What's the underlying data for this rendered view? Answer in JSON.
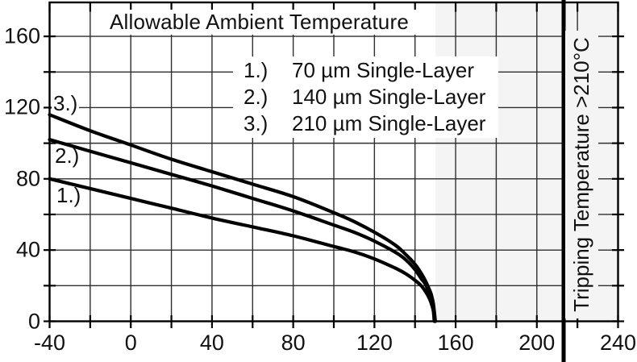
{
  "colors": {
    "background": "#ffffff",
    "curve": "#000000",
    "grid": "#2e2e2e",
    "frame": "#000000",
    "shaded_region": "#f4f4f4",
    "text": "#111111"
  },
  "chart_data": {
    "type": "line",
    "title": "Allowable Ambient Temperature",
    "xlabel": "",
    "ylabel": "",
    "xlim": [
      -40,
      240
    ],
    "ylim": [
      0,
      179
    ],
    "x_ticks": [
      -40,
      0,
      40,
      80,
      120,
      160,
      200,
      240
    ],
    "y_ticks": [
      0,
      40,
      80,
      120,
      160
    ],
    "grid_step": 20,
    "grid": "on",
    "legend_position": "top-center",
    "series": [
      {
        "marker": "1.)",
        "name": "70 µm Single-Layer",
        "points": [
          [
            -40,
            80
          ],
          [
            -20,
            74.5
          ],
          [
            0,
            69
          ],
          [
            20,
            63.5
          ],
          [
            40,
            58
          ],
          [
            60,
            53
          ],
          [
            80,
            48
          ],
          [
            100,
            42
          ],
          [
            110,
            39
          ],
          [
            120,
            35
          ],
          [
            130,
            30
          ],
          [
            135,
            27
          ],
          [
            140,
            23
          ],
          [
            143,
            20
          ],
          [
            145,
            17
          ],
          [
            147,
            13
          ],
          [
            148,
            10
          ],
          [
            149,
            6
          ],
          [
            149.5,
            0
          ]
        ]
      },
      {
        "marker": "2.)",
        "name": "140 µm Single-Layer",
        "points": [
          [
            -40,
            102
          ],
          [
            -20,
            95.5
          ],
          [
            0,
            89
          ],
          [
            20,
            82.5
          ],
          [
            40,
            76
          ],
          [
            60,
            69
          ],
          [
            80,
            62
          ],
          [
            100,
            54
          ],
          [
            110,
            50
          ],
          [
            120,
            45
          ],
          [
            130,
            39
          ],
          [
            135,
            35
          ],
          [
            140,
            29
          ],
          [
            143,
            24
          ],
          [
            145,
            21
          ],
          [
            147,
            16
          ],
          [
            148,
            13
          ],
          [
            149,
            8
          ],
          [
            149.8,
            0
          ]
        ]
      },
      {
        "marker": "3.)",
        "name": "210 µm Single-Layer",
        "points": [
          [
            -40,
            116
          ],
          [
            -20,
            107
          ],
          [
            0,
            99
          ],
          [
            20,
            91
          ],
          [
            40,
            84
          ],
          [
            60,
            77
          ],
          [
            80,
            70
          ],
          [
            100,
            61
          ],
          [
            110,
            56
          ],
          [
            120,
            50
          ],
          [
            130,
            43
          ],
          [
            135,
            38
          ],
          [
            140,
            32
          ],
          [
            143,
            27
          ],
          [
            145,
            23
          ],
          [
            147,
            18
          ],
          [
            148,
            15
          ],
          [
            149,
            10
          ],
          [
            150,
            0
          ]
        ]
      }
    ],
    "shaded_region": {
      "x_start": 150,
      "x_end": 240
    },
    "tripping_line": {
      "x": 213,
      "label": "Tripping Temperature >210°C"
    }
  }
}
